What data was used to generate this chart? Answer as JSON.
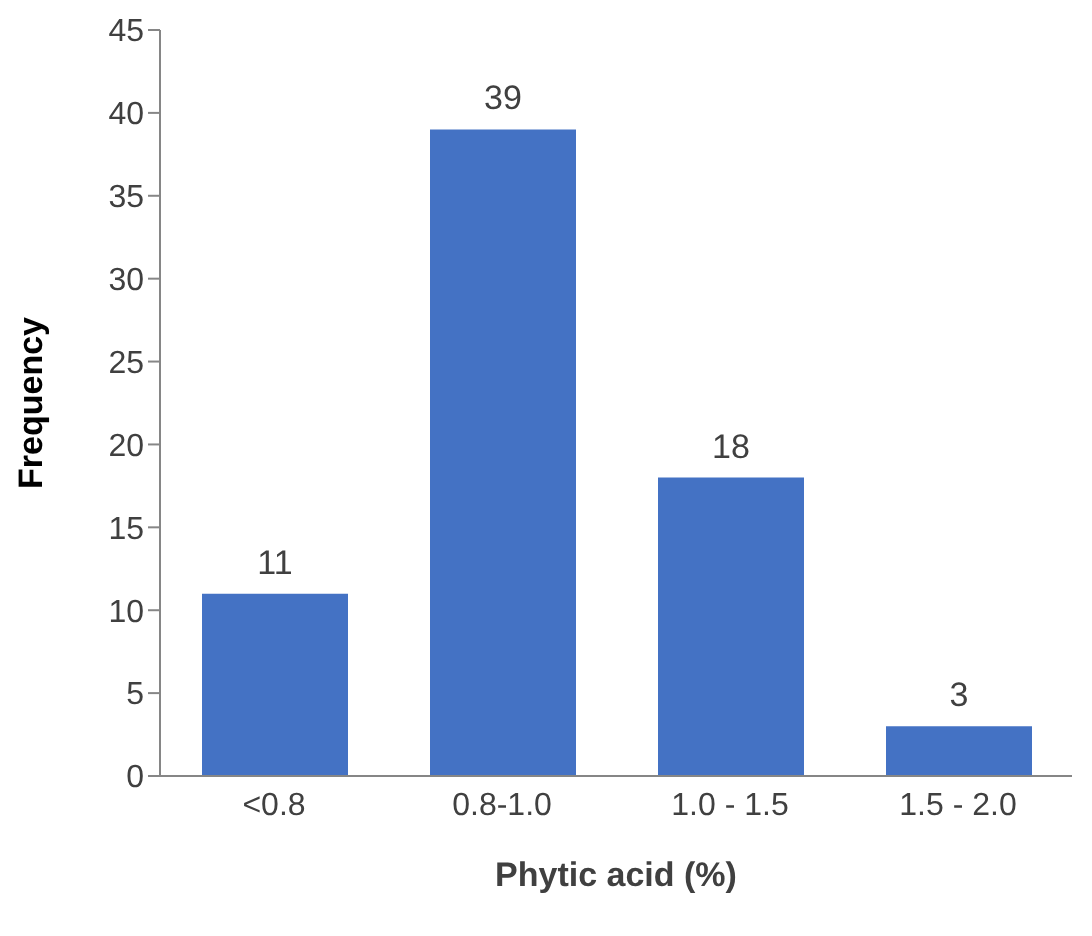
{
  "chart_data": {
    "type": "bar",
    "categories": [
      "<0.8",
      "0.8-1.0",
      "1.0 - 1.5",
      "1.5 - 2.0"
    ],
    "values": [
      11,
      39,
      18,
      3
    ],
    "color": "#4472c4",
    "data_labels": true,
    "xlabel": "Phytic acid (%)",
    "ylabel": "Frequency",
    "ylim": [
      0,
      45
    ],
    "yticks": [
      0,
      5,
      10,
      15,
      20,
      25,
      30,
      35,
      40,
      45
    ],
    "grid": false,
    "legend": false
  }
}
